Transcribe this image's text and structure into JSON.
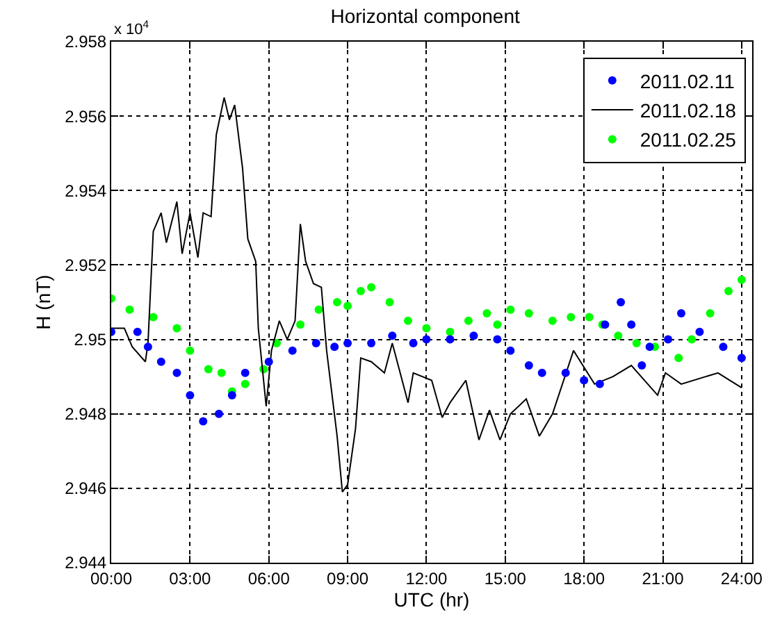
{
  "chart_data": {
    "type": "line",
    "title": "Horizontal component",
    "xlabel": "UTC (hr)",
    "ylabel": "H (nT)",
    "annotations": [
      "x 10$^{4}$"
    ],
    "xlim": [
      0,
      24.4
    ],
    "xticks": [
      {
        "value": 0,
        "label": "00:00"
      },
      {
        "value": 3,
        "label": "03:00"
      },
      {
        "value": 6,
        "label": "06:00"
      },
      {
        "value": 9,
        "label": "09:00"
      },
      {
        "value": 12,
        "label": "12:00"
      },
      {
        "value": 15,
        "label": "15:00"
      },
      {
        "value": 18,
        "label": "18:00"
      },
      {
        "value": 21,
        "label": "21:00"
      },
      {
        "value": 24,
        "label": "24:00"
      }
    ],
    "ylim": [
      2.944,
      2.958
    ],
    "yticks": [
      2.944,
      2.946,
      2.948,
      2.95,
      2.952,
      2.954,
      2.956,
      2.958
    ],
    "grid": true,
    "legend": "top right",
    "series": [
      {
        "name": "2011.02.11",
        "type": "scatter",
        "marker": "circle",
        "color": "#0000ff",
        "x": [
          0,
          1.0,
          1.4,
          1.9,
          2.5,
          3.0,
          3.5,
          4.1,
          4.6,
          5.1,
          6.0,
          6.9,
          7.8,
          8.5,
          9.0,
          9.9,
          10.7,
          11.5,
          12.0,
          12.9,
          13.8,
          14.7,
          15.2,
          15.9,
          16.4,
          17.3,
          18.0,
          18.6,
          18.8,
          19.4,
          19.8,
          20.2,
          20.5,
          21.2,
          21.7,
          22.4,
          23.3,
          24.0
        ],
        "values": [
          2.9502,
          2.9502,
          2.9498,
          2.9494,
          2.9491,
          2.9485,
          2.9478,
          2.948,
          2.9485,
          2.9491,
          2.9494,
          2.9497,
          2.9499,
          2.9498,
          2.9499,
          2.9499,
          2.9501,
          2.9499,
          2.95,
          2.95,
          2.9501,
          2.95,
          2.9497,
          2.9493,
          2.9491,
          2.9491,
          2.9489,
          2.9488,
          2.9504,
          2.951,
          2.9504,
          2.9493,
          2.9498,
          2.95,
          2.9507,
          2.9502,
          2.9498,
          2.9495
        ]
      },
      {
        "name": "2011.02.18",
        "marker": "none",
        "color": "#000000",
        "x": [
          0,
          0.5,
          0.8,
          1.3,
          1.4,
          1.6,
          1.9,
          2.1,
          2.5,
          2.7,
          3.0,
          3.3,
          3.5,
          3.8,
          4.0,
          4.3,
          4.5,
          4.7,
          5.0,
          5.2,
          5.5,
          5.6,
          5.9,
          6.1,
          6.4,
          6.7,
          7.0,
          7.2,
          7.4,
          7.7,
          8.0,
          8.2,
          8.6,
          8.8,
          9.0,
          9.3,
          9.5,
          9.9,
          10.4,
          10.7,
          11.0,
          11.3,
          11.5,
          12.2,
          12.6,
          12.9,
          13.5,
          14.0,
          14.4,
          14.8,
          15.2,
          15.8,
          16.3,
          16.8,
          17.6,
          18.4,
          19.1,
          19.8,
          20.8,
          21.1,
          21.7,
          23.1,
          24.0
        ],
        "values": [
          2.9503,
          2.9503,
          2.9498,
          2.9494,
          2.9499,
          2.9529,
          2.9534,
          2.9526,
          2.9537,
          2.9523,
          2.9534,
          2.9522,
          2.9534,
          2.9533,
          2.9555,
          2.9565,
          2.9559,
          2.9563,
          2.9546,
          2.9527,
          2.9521,
          2.9503,
          2.9482,
          2.9497,
          2.9505,
          2.95,
          2.9505,
          2.9531,
          2.9521,
          2.9515,
          2.9514,
          2.9497,
          2.9474,
          2.9459,
          2.9461,
          2.9476,
          2.9495,
          2.9494,
          2.9491,
          2.9499,
          2.9491,
          2.9483,
          2.9491,
          2.9489,
          2.9479,
          2.9483,
          2.9489,
          2.9473,
          2.9481,
          2.9473,
          2.948,
          2.9484,
          2.9474,
          2.948,
          2.9497,
          2.9488,
          2.949,
          2.9493,
          2.9485,
          2.9491,
          2.9488,
          2.9491,
          2.9487
        ]
      },
      {
        "name": "2011.02.25",
        "type": "scatter",
        "marker": "circle",
        "color": "#00ff00",
        "x": [
          0,
          0.7,
          1.6,
          2.5,
          3.0,
          3.7,
          4.2,
          4.6,
          5.1,
          5.8,
          6.3,
          7.2,
          7.9,
          8.6,
          9.0,
          9.5,
          9.9,
          10.6,
          11.3,
          12.0,
          12.9,
          13.6,
          14.3,
          14.7,
          15.2,
          15.9,
          16.8,
          17.5,
          18.2,
          18.7,
          19.3,
          20.0,
          20.7,
          21.6,
          22.1,
          22.8,
          23.5,
          24.0
        ],
        "values": [
          2.9511,
          2.9508,
          2.9506,
          2.9503,
          2.9497,
          2.9492,
          2.9491,
          2.9486,
          2.9488,
          2.9492,
          2.9499,
          2.9504,
          2.9508,
          2.951,
          2.9509,
          2.9513,
          2.9514,
          2.951,
          2.9505,
          2.9503,
          2.9502,
          2.9505,
          2.9507,
          2.9504,
          2.9508,
          2.9507,
          2.9505,
          2.9506,
          2.9506,
          2.9504,
          2.9501,
          2.9499,
          2.9498,
          2.9495,
          2.95,
          2.9507,
          2.9513,
          2.9516
        ]
      }
    ]
  }
}
